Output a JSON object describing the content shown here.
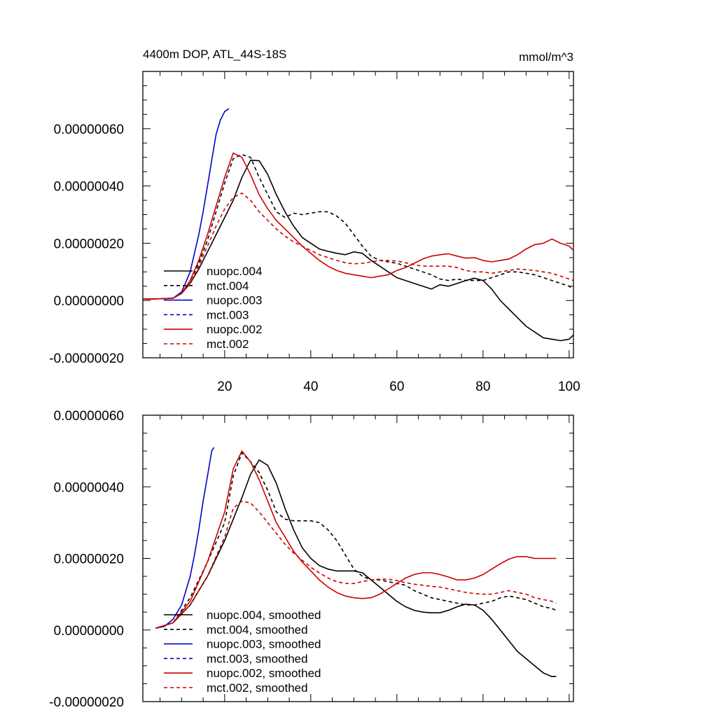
{
  "chart_data": [
    {
      "type": "line",
      "title": "4400m DOP, ATL_44S-18S",
      "units": "mmol/m^3",
      "xlim": [
        1,
        101
      ],
      "ylim": [
        -2e-07,
        8e-07
      ],
      "x_ticks": [
        20,
        40,
        60,
        80,
        100
      ],
      "x_tick_labels": [
        "20",
        "40",
        "60",
        "80",
        "100"
      ],
      "y_ticks": [
        -2e-07,
        0.0,
        2e-07,
        4e-07,
        6e-07
      ],
      "y_tick_labels": [
        "-0.00000020",
        "0.00000000",
        "0.00000020",
        "0.00000040",
        "0.00000060"
      ],
      "legend_position": "lower-left",
      "series": [
        {
          "name": "nuopc.004",
          "color": "#000000",
          "dash": "solid",
          "x": [
            1,
            5,
            8,
            10,
            12,
            14,
            16,
            18,
            20,
            22,
            24,
            26,
            28,
            30,
            32,
            34,
            36,
            38,
            40,
            42,
            44,
            46,
            48,
            50,
            52,
            54,
            56,
            58,
            60,
            62,
            64,
            66,
            68,
            70,
            72,
            74,
            76,
            78,
            80,
            82,
            84,
            86,
            88,
            90,
            92,
            94,
            96,
            98,
            100,
            101
          ],
          "y": [
            5e-09,
            6e-09,
            8e-09,
            2.5e-08,
            6e-08,
            1.1e-07,
            1.7e-07,
            2.3e-07,
            2.9e-07,
            3.5e-07,
            4.3e-07,
            4.9e-07,
            4.88e-07,
            4.4e-07,
            3.7e-07,
            3.1e-07,
            2.6e-07,
            2.2e-07,
            2e-07,
            1.8e-07,
            1.72e-07,
            1.65e-07,
            1.6e-07,
            1.7e-07,
            1.65e-07,
            1.4e-07,
            1.2e-07,
            1e-07,
            8e-08,
            7e-08,
            6e-08,
            5e-08,
            4e-08,
            5.5e-08,
            5e-08,
            6e-08,
            7e-08,
            7.8e-08,
            7e-08,
            4e-08,
            0.0,
            -3e-08,
            -6e-08,
            -9e-08,
            -1.1e-07,
            -1.3e-07,
            -1.35e-07,
            -1.4e-07,
            -1.35e-07,
            -1.2e-07
          ]
        },
        {
          "name": "mct.004",
          "color": "#000000",
          "dash": "dashed",
          "x": [
            1,
            5,
            8,
            10,
            12,
            14,
            16,
            18,
            20,
            22,
            24,
            26,
            28,
            30,
            32,
            34,
            36,
            38,
            40,
            42,
            44,
            46,
            48,
            50,
            52,
            54,
            56,
            58,
            60,
            62,
            64,
            66,
            68,
            70,
            72,
            74,
            76,
            78,
            80,
            82,
            84,
            86,
            88,
            90,
            92,
            94,
            96,
            98,
            100,
            101
          ],
          "y": [
            5e-09,
            6e-09,
            8e-09,
            2.5e-08,
            7e-08,
            1.3e-07,
            2.1e-07,
            3.1e-07,
            4.1e-07,
            4.95e-07,
            5.1e-07,
            5e-07,
            4.3e-07,
            3.7e-07,
            3.1e-07,
            2.9e-07,
            3.05e-07,
            3e-07,
            3.05e-07,
            3.1e-07,
            3.1e-07,
            2.95e-07,
            2.7e-07,
            2.3e-07,
            1.9e-07,
            1.55e-07,
            1.4e-07,
            1.35e-07,
            1.3e-07,
            1.2e-07,
            1.1e-07,
            1e-07,
            9e-08,
            7.5e-08,
            7e-08,
            7.5e-08,
            7e-08,
            7e-08,
            7e-08,
            8e-08,
            9e-08,
            1e-07,
            1e-07,
            9.5e-08,
            9e-08,
            8e-08,
            7e-08,
            6e-08,
            5e-08,
            4e-08
          ]
        },
        {
          "name": "nuopc.003",
          "color": "#0000cc",
          "dash": "solid",
          "x": [
            1,
            5,
            8,
            10,
            12,
            14,
            15,
            16,
            17,
            18,
            19,
            20,
            21
          ],
          "y": [
            5e-09,
            6e-09,
            8e-09,
            3e-08,
            1e-07,
            2.3e-07,
            3.1e-07,
            4e-07,
            4.9e-07,
            5.8e-07,
            6.3e-07,
            6.6e-07,
            6.7e-07
          ]
        },
        {
          "name": "mct.003",
          "color": "#0000cc",
          "dash": "dashed",
          "x": [],
          "y": []
        },
        {
          "name": "nuopc.002",
          "color": "#cc0000",
          "dash": "solid",
          "x": [
            1,
            5,
            8,
            10,
            12,
            14,
            16,
            18,
            20,
            22,
            24,
            26,
            28,
            30,
            32,
            34,
            36,
            38,
            40,
            42,
            44,
            46,
            48,
            50,
            52,
            54,
            56,
            58,
            60,
            62,
            64,
            66,
            68,
            70,
            72,
            74,
            76,
            78,
            80,
            82,
            84,
            86,
            88,
            90,
            92,
            94,
            96,
            98,
            100,
            101
          ],
          "y": [
            5e-09,
            6e-09,
            8e-09,
            2.5e-08,
            7e-08,
            1.4e-07,
            2.3e-07,
            3.3e-07,
            4.3e-07,
            5.15e-07,
            5e-07,
            4.4e-07,
            3.7e-07,
            3.2e-07,
            2.8e-07,
            2.5e-07,
            2.2e-07,
            1.9e-07,
            1.65e-07,
            1.4e-07,
            1.2e-07,
            1.05e-07,
            9.5e-08,
            9e-08,
            8.5e-08,
            8e-08,
            8.5e-08,
            9e-08,
            1.05e-07,
            1.15e-07,
            1.3e-07,
            1.45e-07,
            1.55e-07,
            1.6e-07,
            1.63e-07,
            1.55e-07,
            1.48e-07,
            1.5e-07,
            1.4e-07,
            1.35e-07,
            1.4e-07,
            1.45e-07,
            1.6e-07,
            1.8e-07,
            1.95e-07,
            2e-07,
            2.15e-07,
            2e-07,
            1.9e-07,
            1.75e-07
          ]
        },
        {
          "name": "mct.002",
          "color": "#cc0000",
          "dash": "dashed",
          "x": [
            1,
            5,
            8,
            10,
            12,
            14,
            16,
            18,
            20,
            22,
            24,
            26,
            28,
            30,
            32,
            34,
            36,
            38,
            40,
            42,
            44,
            46,
            48,
            50,
            52,
            54,
            56,
            58,
            60,
            62,
            64,
            66,
            68,
            70,
            72,
            74,
            76,
            78,
            80,
            82,
            84,
            86,
            88,
            90,
            92,
            94,
            96,
            98,
            100,
            101
          ],
          "y": [
            5e-09,
            6e-09,
            8e-09,
            2.5e-08,
            6e-08,
            1.2e-07,
            1.9e-07,
            2.6e-07,
            3.2e-07,
            3.6e-07,
            3.75e-07,
            3.5e-07,
            3.1e-07,
            2.8e-07,
            2.5e-07,
            2.25e-07,
            2.05e-07,
            1.9e-07,
            1.75e-07,
            1.6e-07,
            1.5e-07,
            1.4e-07,
            1.32e-07,
            1.28e-07,
            1.3e-07,
            1.35e-07,
            1.4e-07,
            1.4e-07,
            1.38e-07,
            1.32e-07,
            1.25e-07,
            1.2e-07,
            1.2e-07,
            1.2e-07,
            1.2e-07,
            1.15e-07,
            1.05e-07,
            1e-07,
            1e-07,
            9.5e-08,
            1e-07,
            1.05e-07,
            1.1e-07,
            1.08e-07,
            1.05e-07,
            1e-07,
            9.5e-08,
            8.5e-08,
            7.5e-08,
            7e-08
          ]
        }
      ]
    },
    {
      "type": "line",
      "title": "",
      "units": "",
      "xlim": [
        1,
        101
      ],
      "ylim": [
        -2e-07,
        6e-07
      ],
      "x_ticks": [
        20,
        40,
        60,
        80,
        100
      ],
      "x_tick_labels": [],
      "y_ticks": [
        -2e-07,
        0.0,
        2e-07,
        4e-07,
        6e-07
      ],
      "y_tick_labels": [
        "-0.00000020",
        "0.00000000",
        "0.00000020",
        "0.00000040",
        "0.00000060"
      ],
      "legend_position": "lower-left",
      "series": [
        {
          "name": "nuopc.004, smoothed",
          "color": "#000000",
          "dash": "solid",
          "x": [
            4,
            8,
            12,
            16,
            20,
            24,
            26,
            28,
            30,
            32,
            34,
            36,
            38,
            40,
            42,
            44,
            46,
            48,
            50,
            52,
            54,
            56,
            58,
            60,
            62,
            64,
            66,
            68,
            70,
            72,
            74,
            76,
            78,
            80,
            82,
            84,
            86,
            88,
            90,
            92,
            94,
            96,
            97
          ],
          "y": [
            5e-09,
            2e-08,
            7e-08,
            1.5e-07,
            2.5e-07,
            3.7e-07,
            4.35e-07,
            4.75e-07,
            4.6e-07,
            4.1e-07,
            3.4e-07,
            2.8e-07,
            2.3e-07,
            2e-07,
            1.8e-07,
            1.7e-07,
            1.65e-07,
            1.65e-07,
            1.65e-07,
            1.6e-07,
            1.4e-07,
            1.2e-07,
            1e-07,
            8e-08,
            6.5e-08,
            5.5e-08,
            5e-08,
            4.8e-08,
            4.8e-08,
            5.5e-08,
            6.5e-08,
            7.2e-08,
            7e-08,
            5.5e-08,
            3e-08,
            0.0,
            -3e-08,
            -6e-08,
            -8e-08,
            -1e-07,
            -1.2e-07,
            -1.3e-07,
            -1.3e-07
          ]
        },
        {
          "name": "mct.004, smoothed",
          "color": "#000000",
          "dash": "dashed",
          "x": [
            4,
            8,
            12,
            16,
            20,
            22,
            24,
            26,
            28,
            30,
            32,
            34,
            36,
            38,
            40,
            42,
            44,
            46,
            48,
            50,
            52,
            54,
            56,
            58,
            60,
            62,
            64,
            66,
            68,
            70,
            72,
            74,
            76,
            78,
            80,
            82,
            84,
            86,
            88,
            90,
            92,
            94,
            96,
            97
          ],
          "y": [
            5e-09,
            2e-08,
            9e-08,
            1.9e-07,
            3e-07,
            4.3e-07,
            4.95e-07,
            4.7e-07,
            4.4e-07,
            3.9e-07,
            3.3e-07,
            3.1e-07,
            3.05e-07,
            3.05e-07,
            3.05e-07,
            3e-07,
            2.8e-07,
            2.5e-07,
            2.1e-07,
            1.7e-07,
            1.5e-07,
            1.4e-07,
            1.4e-07,
            1.35e-07,
            1.3e-07,
            1.25e-07,
            1.1e-07,
            1e-07,
            9e-08,
            8.5e-08,
            8e-08,
            7.5e-08,
            7e-08,
            7e-08,
            7.5e-08,
            8e-08,
            9e-08,
            9.5e-08,
            9e-08,
            8.5e-08,
            7.5e-08,
            6.5e-08,
            6e-08,
            5.5e-08
          ]
        },
        {
          "name": "nuopc.003, smoothed",
          "color": "#0000cc",
          "dash": "solid",
          "x": [
            4,
            6,
            8,
            10,
            12,
            13,
            14,
            15,
            16,
            17,
            17.5
          ],
          "y": [
            5e-09,
            1e-08,
            3e-08,
            7e-08,
            1.5e-07,
            2.1e-07,
            2.8e-07,
            3.6e-07,
            4.3e-07,
            5e-07,
            5.1e-07
          ]
        },
        {
          "name": "mct.003, smoothed",
          "color": "#0000cc",
          "dash": "dashed",
          "x": [],
          "y": []
        },
        {
          "name": "nuopc.002, smoothed",
          "color": "#cc0000",
          "dash": "solid",
          "x": [
            4,
            8,
            12,
            16,
            20,
            22,
            24,
            26,
            28,
            30,
            32,
            34,
            36,
            38,
            40,
            42,
            44,
            46,
            48,
            50,
            52,
            54,
            56,
            58,
            60,
            62,
            64,
            66,
            68,
            70,
            72,
            74,
            76,
            78,
            80,
            82,
            84,
            86,
            88,
            90,
            92,
            94,
            96,
            97
          ],
          "y": [
            5e-09,
            2e-08,
            8e-08,
            1.9e-07,
            3.3e-07,
            4.5e-07,
            5e-07,
            4.7e-07,
            4.2e-07,
            3.6e-07,
            3e-07,
            2.6e-07,
            2.2e-07,
            1.9e-07,
            1.65e-07,
            1.4e-07,
            1.2e-07,
            1.05e-07,
            9.5e-08,
            9e-08,
            8.8e-08,
            9e-08,
            1e-07,
            1.15e-07,
            1.3e-07,
            1.45e-07,
            1.55e-07,
            1.6e-07,
            1.6e-07,
            1.55e-07,
            1.48e-07,
            1.4e-07,
            1.4e-07,
            1.45e-07,
            1.55e-07,
            1.7e-07,
            1.85e-07,
            1.98e-07,
            2.05e-07,
            2.05e-07,
            2e-07,
            2e-07,
            2e-07,
            2e-07
          ]
        },
        {
          "name": "mct.002, smoothed",
          "color": "#cc0000",
          "dash": "dashed",
          "x": [
            4,
            8,
            12,
            16,
            20,
            22,
            24,
            26,
            28,
            30,
            32,
            34,
            36,
            38,
            40,
            42,
            44,
            46,
            48,
            50,
            52,
            54,
            56,
            58,
            60,
            62,
            64,
            66,
            68,
            70,
            72,
            74,
            76,
            78,
            80,
            82,
            84,
            86,
            88,
            90,
            92,
            94,
            96,
            97
          ],
          "y": [
            5e-09,
            2e-08,
            7e-08,
            1.5e-07,
            2.6e-07,
            3.4e-07,
            3.6e-07,
            3.55e-07,
            3.3e-07,
            3e-07,
            2.7e-07,
            2.4e-07,
            2.15e-07,
            1.95e-07,
            1.75e-07,
            1.6e-07,
            1.45e-07,
            1.35e-07,
            1.3e-07,
            1.3e-07,
            1.35e-07,
            1.4e-07,
            1.42e-07,
            1.42e-07,
            1.38e-07,
            1.32e-07,
            1.28e-07,
            1.25e-07,
            1.22e-07,
            1.2e-07,
            1.15e-07,
            1.1e-07,
            1.05e-07,
            1.02e-07,
            1e-07,
            1e-07,
            1.05e-07,
            1.1e-07,
            1.05e-07,
            1e-07,
            9e-08,
            8.5e-08,
            8e-08,
            7.5e-08
          ]
        }
      ]
    }
  ]
}
